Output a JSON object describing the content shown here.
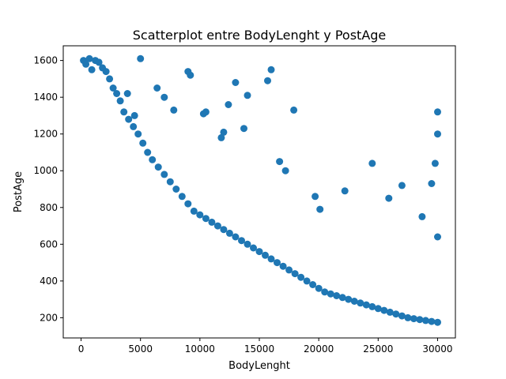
{
  "chart_data": {
    "type": "scatter",
    "title": "Scatterplot entre BodyLenght y PostAge",
    "xlabel": "BodyLenght",
    "ylabel": "PostAge",
    "xlim": [
      -1500,
      31500
    ],
    "ylim": [
      90,
      1680
    ],
    "xticks": [
      0,
      5000,
      10000,
      15000,
      20000,
      25000,
      30000
    ],
    "yticks": [
      200,
      400,
      600,
      800,
      1000,
      1200,
      1400,
      1600
    ],
    "marker_color": "#1f77b4",
    "grid": false,
    "legend": "none",
    "series": [
      {
        "x": [
          200,
          400,
          700,
          900,
          1200,
          1500,
          1800,
          2100,
          2400,
          2700,
          3000,
          3300,
          3600,
          4000,
          4400,
          4800,
          5200,
          5600,
          6000,
          6500,
          7000,
          7500,
          8000,
          8500,
          9000,
          9500,
          10000,
          10500,
          11000,
          11500,
          12000,
          12500,
          13000,
          13500,
          14000,
          14500,
          15000,
          15500,
          16000,
          16500,
          17000,
          17500,
          18000,
          18500,
          19000,
          19500,
          20000,
          20500,
          21000,
          21500,
          22000,
          22500,
          23000,
          23500,
          24000,
          24500,
          25000,
          25500,
          26000,
          26500,
          27000,
          27500,
          28000,
          28500,
          29000,
          29500,
          30000,
          30000,
          30000,
          29800,
          5000,
          9000,
          9200,
          13000,
          14000,
          15700,
          16000,
          17900,
          12400,
          10300,
          10500,
          13700,
          11800,
          12000,
          16700,
          17200,
          19700,
          20100,
          22200,
          24500,
          25900,
          27000,
          29500,
          28700,
          30000,
          6400,
          7000,
          7800,
          3900,
          4500
        ],
        "y": [
          1600,
          1580,
          1610,
          1550,
          1600,
          1590,
          1560,
          1540,
          1500,
          1450,
          1420,
          1380,
          1320,
          1280,
          1240,
          1200,
          1150,
          1100,
          1060,
          1020,
          980,
          940,
          900,
          860,
          820,
          780,
          760,
          740,
          720,
          700,
          680,
          660,
          640,
          620,
          600,
          580,
          560,
          540,
          520,
          500,
          480,
          460,
          440,
          420,
          400,
          380,
          360,
          340,
          330,
          320,
          310,
          300,
          290,
          280,
          270,
          260,
          250,
          240,
          230,
          220,
          210,
          200,
          195,
          190,
          185,
          180,
          175,
          1320,
          1200,
          1040,
          1610,
          1540,
          1520,
          1480,
          1410,
          1490,
          1550,
          1330,
          1360,
          1310,
          1320,
          1230,
          1180,
          1210,
          1050,
          1000,
          860,
          790,
          890,
          1040,
          850,
          920,
          930,
          750,
          640,
          1450,
          1400,
          1330,
          1420,
          1300
        ]
      }
    ]
  }
}
